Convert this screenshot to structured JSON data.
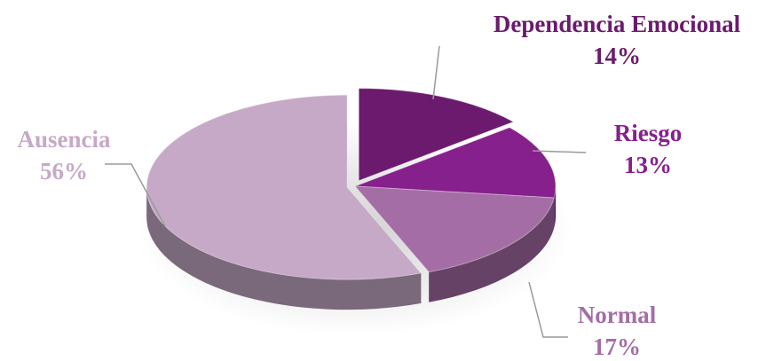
{
  "chart_data": {
    "type": "pie",
    "categories": [
      "Dependencia Emocional",
      "Riesgo",
      "Normal",
      "Ausencia"
    ],
    "values": [
      14,
      13,
      17,
      56
    ],
    "value_labels": [
      "14%",
      "13%",
      "17%",
      "56%"
    ],
    "colors": [
      "#6b1a6d",
      "#86208c",
      "#a56da5",
      "#c6a9c7"
    ]
  }
}
